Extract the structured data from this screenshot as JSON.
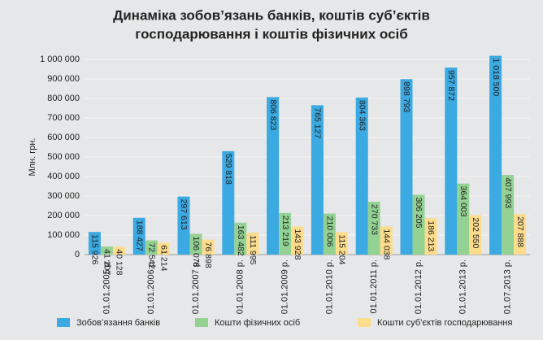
{
  "chart_data": {
    "type": "bar",
    "title": [
      "Динаміка зобов’язань банків, коштів суб’єктів",
      "господарювання і коштів фізичних осіб"
    ],
    "ylabel": "Млн. грн.",
    "categories": [
      "01.01.2005 р.",
      "01.01.2006 р.",
      "01.01.2007 р.",
      "01.01.2008 р.",
      "01.01.2009 р.",
      "01.01.2010 р.",
      "01.01.2011 р.",
      "01.01.2012 р.",
      "01.01.2013 р.",
      "01.07.2013 р."
    ],
    "series": [
      {
        "name": "Зобов’язання банків",
        "color": "#3ba9e2",
        "values": [
          115926,
          188427,
          297613,
          529818,
          806823,
          765127,
          804363,
          898793,
          957872,
          1018500
        ],
        "value_labels": [
          "115 926",
          "188 427",
          "297 613",
          "529 818",
          "806 823",
          "765 127",
          "804 363",
          "898 793",
          "957 872",
          "1 018 500"
        ]
      },
      {
        "name": "Кошти фізичних осіб",
        "color": "#94d294",
        "values": [
          41207,
          72542,
          106078,
          163482,
          213219,
          210006,
          270733,
          306205,
          364003,
          407993
        ],
        "value_labels": [
          "41 207",
          "72 542",
          "106 078",
          "163 482",
          "213 219",
          "210 006",
          "270 733",
          "306 205",
          "364 003",
          "407 993"
        ]
      },
      {
        "name": "Кошти суб’єктів господарювання",
        "color": "#fddc8c",
        "values": [
          40128,
          61214,
          76898,
          111995,
          143928,
          115204,
          144038,
          186213,
          202550,
          207888
        ],
        "value_labels": [
          "40 128",
          "61 214",
          "76 898",
          "111 995",
          "143 928",
          "115 204",
          "144 038",
          "186 213",
          "202 550",
          "207 888"
        ]
      }
    ],
    "ylim": [
      0,
      1000000
    ],
    "yticks": [
      0,
      {
        "value": 100000,
        "label": "100 000"
      },
      {
        "value": 200000,
        "label": "200 000"
      },
      {
        "value": 300000,
        "label": "300 000"
      },
      {
        "value": 400000,
        "label": "400 000"
      },
      {
        "value": 500000,
        "label": "500 000"
      },
      {
        "value": 600000,
        "label": "600 000"
      },
      {
        "value": 700000,
        "label": "700 000"
      },
      {
        "value": 800000,
        "label": "800 000"
      },
      {
        "value": 900000,
        "label": "900 000"
      },
      {
        "value": 1000000,
        "label": "1 000 000"
      }
    ],
    "grid": true
  }
}
